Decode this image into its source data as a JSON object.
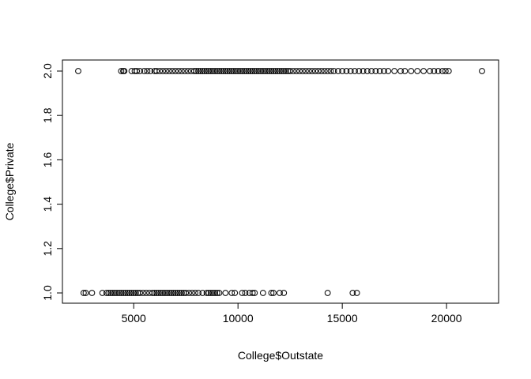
{
  "chart_data": {
    "type": "scatter",
    "title": "",
    "xlabel": "College$Outstate",
    "ylabel": "College$Private",
    "xlim": [
      2340,
      21700
    ],
    "ylim": [
      1.0,
      2.0
    ],
    "x_ticks": [
      5000,
      10000,
      15000,
      20000
    ],
    "x_tick_labels": [
      "5000",
      "10000",
      "15000",
      "20000"
    ],
    "y_ticks": [
      1.0,
      1.2,
      1.4,
      1.6,
      1.8,
      2.0
    ],
    "y_tick_labels": [
      "1.0",
      "1.2",
      "1.4",
      "1.6",
      "1.8",
      "2.0"
    ],
    "grid": false,
    "marker": "open-circle",
    "point_color": "#000000",
    "series": [
      {
        "values": [
          [
            2340,
            2
          ],
          [
            4400,
            2
          ],
          [
            4500,
            2
          ],
          [
            4550,
            2
          ],
          [
            4900,
            2
          ],
          [
            5050,
            2
          ],
          [
            5150,
            2
          ],
          [
            5300,
            2
          ],
          [
            5500,
            2
          ],
          [
            5650,
            2
          ],
          [
            5800,
            2
          ],
          [
            6000,
            2
          ],
          [
            6100,
            2
          ],
          [
            6250,
            2
          ],
          [
            6400,
            2
          ],
          [
            6550,
            2
          ],
          [
            6700,
            2
          ],
          [
            6850,
            2
          ],
          [
            7000,
            2
          ],
          [
            7150,
            2
          ],
          [
            7300,
            2
          ],
          [
            7450,
            2
          ],
          [
            7600,
            2
          ],
          [
            7750,
            2
          ],
          [
            7900,
            2
          ],
          [
            8000,
            2
          ],
          [
            8100,
            2
          ],
          [
            8200,
            2
          ],
          [
            8300,
            2
          ],
          [
            8400,
            2
          ],
          [
            8500,
            2
          ],
          [
            8600,
            2
          ],
          [
            8700,
            2
          ],
          [
            8800,
            2
          ],
          [
            8900,
            2
          ],
          [
            9000,
            2
          ],
          [
            9100,
            2
          ],
          [
            9200,
            2
          ],
          [
            9300,
            2
          ],
          [
            9400,
            2
          ],
          [
            9500,
            2
          ],
          [
            9600,
            2
          ],
          [
            9700,
            2
          ],
          [
            9800,
            2
          ],
          [
            9900,
            2
          ],
          [
            10000,
            2
          ],
          [
            10100,
            2
          ],
          [
            10200,
            2
          ],
          [
            10300,
            2
          ],
          [
            10400,
            2
          ],
          [
            10500,
            2
          ],
          [
            10600,
            2
          ],
          [
            10700,
            2
          ],
          [
            10800,
            2
          ],
          [
            10900,
            2
          ],
          [
            11000,
            2
          ],
          [
            11100,
            2
          ],
          [
            11200,
            2
          ],
          [
            11300,
            2
          ],
          [
            11400,
            2
          ],
          [
            11500,
            2
          ],
          [
            11600,
            2
          ],
          [
            11700,
            2
          ],
          [
            11800,
            2
          ],
          [
            11900,
            2
          ],
          [
            12000,
            2
          ],
          [
            12100,
            2
          ],
          [
            12200,
            2
          ],
          [
            12300,
            2
          ],
          [
            12400,
            2
          ],
          [
            12500,
            2
          ],
          [
            12650,
            2
          ],
          [
            12800,
            2
          ],
          [
            12950,
            2
          ],
          [
            13100,
            2
          ],
          [
            13250,
            2
          ],
          [
            13400,
            2
          ],
          [
            13550,
            2
          ],
          [
            13700,
            2
          ],
          [
            13850,
            2
          ],
          [
            14000,
            2
          ],
          [
            14150,
            2
          ],
          [
            14300,
            2
          ],
          [
            14450,
            2
          ],
          [
            14600,
            2
          ],
          [
            14800,
            2
          ],
          [
            15000,
            2
          ],
          [
            15200,
            2
          ],
          [
            15400,
            2
          ],
          [
            15600,
            2
          ],
          [
            15800,
            2
          ],
          [
            16000,
            2
          ],
          [
            16200,
            2
          ],
          [
            16400,
            2
          ],
          [
            16600,
            2
          ],
          [
            16800,
            2
          ],
          [
            17000,
            2
          ],
          [
            17200,
            2
          ],
          [
            17500,
            2
          ],
          [
            17800,
            2
          ],
          [
            18000,
            2
          ],
          [
            18300,
            2
          ],
          [
            18600,
            2
          ],
          [
            18900,
            2
          ],
          [
            19200,
            2
          ],
          [
            19400,
            2
          ],
          [
            19600,
            2
          ],
          [
            19800,
            2
          ],
          [
            19950,
            2
          ],
          [
            20100,
            2
          ],
          [
            21700,
            2
          ],
          [
            2600,
            1
          ],
          [
            2700,
            1
          ],
          [
            3000,
            1
          ],
          [
            3500,
            1
          ],
          [
            3700,
            1
          ],
          [
            3800,
            1
          ],
          [
            3900,
            1
          ],
          [
            4000,
            1
          ],
          [
            4100,
            1
          ],
          [
            4200,
            1
          ],
          [
            4300,
            1
          ],
          [
            4400,
            1
          ],
          [
            4500,
            1
          ],
          [
            4600,
            1
          ],
          [
            4700,
            1
          ],
          [
            4800,
            1
          ],
          [
            4900,
            1
          ],
          [
            5000,
            1
          ],
          [
            5100,
            1
          ],
          [
            5200,
            1
          ],
          [
            5300,
            1
          ],
          [
            5450,
            1
          ],
          [
            5600,
            1
          ],
          [
            5750,
            1
          ],
          [
            5900,
            1
          ],
          [
            6000,
            1
          ],
          [
            6100,
            1
          ],
          [
            6200,
            1
          ],
          [
            6300,
            1
          ],
          [
            6400,
            1
          ],
          [
            6500,
            1
          ],
          [
            6600,
            1
          ],
          [
            6700,
            1
          ],
          [
            6800,
            1
          ],
          [
            6900,
            1
          ],
          [
            7000,
            1
          ],
          [
            7100,
            1
          ],
          [
            7200,
            1
          ],
          [
            7300,
            1
          ],
          [
            7400,
            1
          ],
          [
            7500,
            1
          ],
          [
            7650,
            1
          ],
          [
            7800,
            1
          ],
          [
            7950,
            1
          ],
          [
            8100,
            1
          ],
          [
            8300,
            1
          ],
          [
            8500,
            1
          ],
          [
            8600,
            1
          ],
          [
            8700,
            1
          ],
          [
            8800,
            1
          ],
          [
            8900,
            1
          ],
          [
            9000,
            1
          ],
          [
            9100,
            1
          ],
          [
            9400,
            1
          ],
          [
            9700,
            1
          ],
          [
            9850,
            1
          ],
          [
            10200,
            1
          ],
          [
            10350,
            1
          ],
          [
            10550,
            1
          ],
          [
            10700,
            1
          ],
          [
            10800,
            1
          ],
          [
            11200,
            1
          ],
          [
            11600,
            1
          ],
          [
            11700,
            1
          ],
          [
            12000,
            1
          ],
          [
            12200,
            1
          ],
          [
            14300,
            1
          ],
          [
            15500,
            1
          ],
          [
            15700,
            1
          ]
        ]
      }
    ]
  }
}
